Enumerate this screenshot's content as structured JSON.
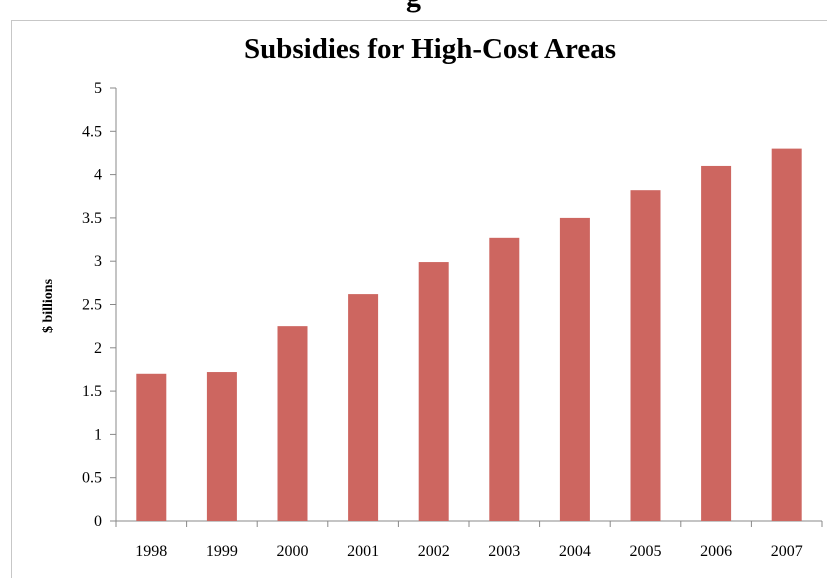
{
  "page": {
    "clipped_heading": "g"
  },
  "chart_data": {
    "type": "bar",
    "title": "Subsidies for High-Cost Areas",
    "xlabel": "",
    "ylabel": "$ billions",
    "categories": [
      "1998",
      "1999",
      "2000",
      "2001",
      "2002",
      "2003",
      "2004",
      "2005",
      "2006",
      "2007"
    ],
    "series": [
      {
        "values": [
          1.7,
          1.72,
          2.25,
          2.62,
          2.99,
          3.27,
          3.5,
          3.82,
          4.1,
          4.3
        ],
        "color": "#cd6660"
      }
    ],
    "ylim": [
      0,
      5
    ],
    "yticks": [
      0,
      0.5,
      1,
      1.5,
      2,
      2.5,
      3,
      3.5,
      4,
      4.5,
      5
    ],
    "ytick_labels": [
      "0",
      "0.5",
      "1",
      "1.5",
      "2",
      "2.5",
      "3",
      "3.5",
      "4",
      "4.5",
      "5"
    ],
    "grid": false,
    "legend": "none",
    "colors": {
      "bar": "#cd6660",
      "axis": "#888888"
    }
  }
}
